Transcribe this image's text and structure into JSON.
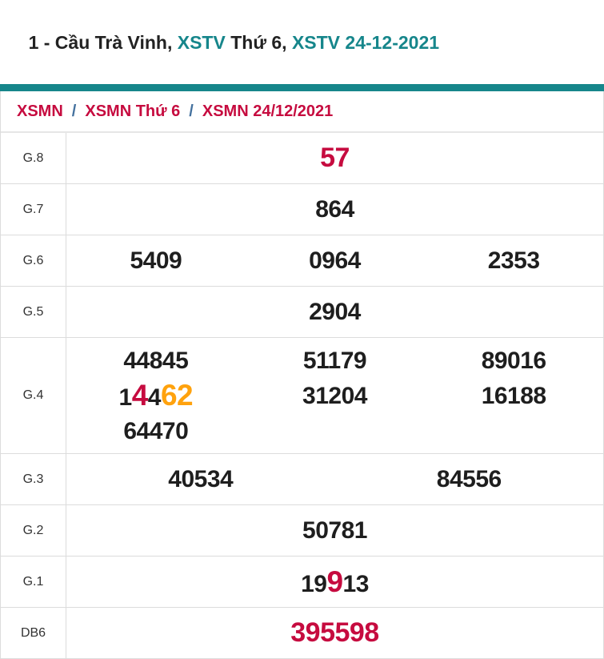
{
  "theme": {
    "teal": "#16868b",
    "red": "#c60b3f",
    "orange": "#ffa20d",
    "link-blue": "#44719e",
    "dark": "#222222",
    "num-black": "#1e1e1e",
    "border": "#dcdcdc"
  },
  "header": {
    "title_segments": [
      {
        "text": "1 - Cầu Trà Vinh, "
      },
      {
        "text": "XSTV"
      },
      {
        "text": " Thứ 6, "
      },
      {
        "text": "XSTV 24-12-2021"
      }
    ]
  },
  "breadcrumb": {
    "separator": "/",
    "items": [
      {
        "label": "XSMN"
      },
      {
        "label": "XSMN Thứ 6"
      },
      {
        "label": "XSMN 24/12/2021"
      }
    ]
  },
  "results": {
    "g8": {
      "label": "G.8",
      "value": "57"
    },
    "g7": {
      "label": "G.7",
      "value": "864"
    },
    "g6": {
      "label": "G.6",
      "values": [
        "5409",
        "0964",
        "2353"
      ]
    },
    "g5": {
      "label": "G.5",
      "value": "2904"
    },
    "g4": {
      "label": "G.4",
      "line1": [
        "44845",
        "51179",
        "89016"
      ],
      "highlighted": {
        "full": "14462",
        "segments": [
          {
            "text": "1",
            "emphasis": "none"
          },
          {
            "text": "4",
            "emphasis": "red"
          },
          {
            "text": "4",
            "emphasis": "none"
          },
          {
            "text": "62",
            "emphasis": "orange"
          }
        ]
      },
      "line2_rest": [
        "31204",
        "16188"
      ],
      "line3": [
        "64470"
      ]
    },
    "g3": {
      "label": "G.3",
      "values": [
        "40534",
        "84556"
      ]
    },
    "g2": {
      "label": "G.2",
      "value": "50781"
    },
    "g1": {
      "label": "G.1",
      "full": "19913",
      "segments": [
        {
          "text": "19",
          "emphasis": "none"
        },
        {
          "text": "9",
          "emphasis": "red"
        },
        {
          "text": "13",
          "emphasis": "none"
        }
      ]
    },
    "db": {
      "label": "DB6",
      "value": "395598"
    }
  }
}
